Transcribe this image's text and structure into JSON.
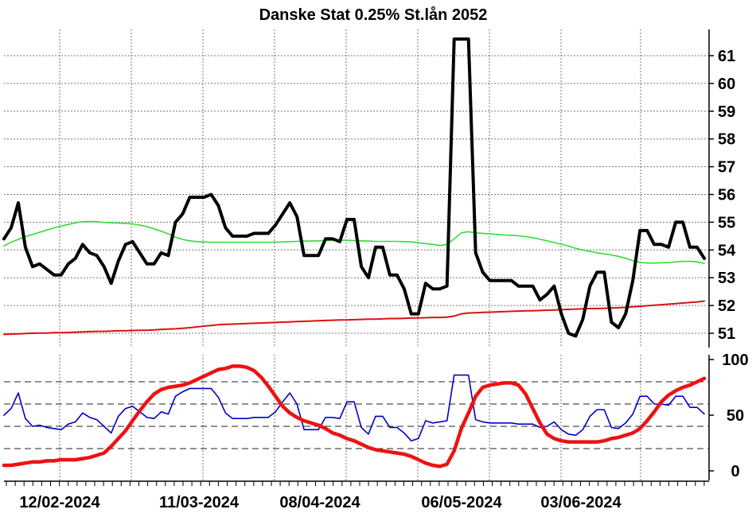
{
  "chart_data": [
    {
      "type": "line",
      "title": "Danske Stat 0.25% St.lån 2052",
      "ylim": [
        50.6,
        61.8
      ],
      "yticks": [
        "51",
        "52",
        "53",
        "54",
        "55",
        "56",
        "57",
        "58",
        "59",
        "60",
        "61"
      ],
      "grid": true,
      "series": [
        {
          "color": "#000000",
          "values": [
            54.4,
            54.8,
            55.7,
            54.1,
            53.4,
            53.5,
            53.3,
            53.1,
            53.1,
            53.5,
            53.7,
            54.2,
            53.9,
            53.8,
            53.4,
            52.8,
            53.6,
            54.2,
            54.3,
            53.9,
            53.5,
            53.5,
            53.9,
            53.8,
            55.0,
            55.3,
            55.9,
            55.9,
            55.9,
            56.0,
            55.6,
            54.8,
            54.5,
            54.5,
            54.5,
            54.6,
            54.6,
            54.6,
            54.9,
            55.3,
            55.7,
            55.2,
            53.8,
            53.8,
            53.8,
            54.4,
            54.4,
            54.3,
            55.1,
            55.1,
            53.4,
            53.0,
            54.1,
            54.1,
            53.1,
            53.1,
            52.6,
            51.7,
            51.7,
            52.8,
            52.6,
            52.6,
            52.7,
            61.6,
            61.6,
            61.6,
            53.9,
            53.2,
            52.9,
            52.9,
            52.9,
            52.9,
            52.7,
            52.7,
            52.7,
            52.2,
            52.4,
            52.7,
            51.7,
            51.0,
            50.9,
            51.5,
            52.7,
            53.2,
            53.2,
            51.4,
            51.2,
            51.7,
            52.9,
            54.7,
            54.7,
            54.2,
            54.2,
            54.1,
            55.0,
            55.0,
            54.1,
            54.1,
            53.7
          ]
        },
        {
          "color": "#33dd33",
          "values": [
            54.15,
            54.28,
            54.38,
            54.48,
            54.56,
            54.64,
            54.72,
            54.8,
            54.86,
            54.92,
            54.98,
            55.02,
            55.03,
            55.02,
            54.99,
            54.98,
            54.97,
            54.96,
            54.94,
            54.9,
            54.84,
            54.76,
            54.68,
            54.58,
            54.46,
            54.38,
            54.33,
            54.3,
            54.29,
            54.28,
            54.28,
            54.28,
            54.28,
            54.28,
            54.28,
            54.28,
            54.28,
            54.28,
            54.28,
            54.29,
            54.3,
            54.31,
            54.32,
            54.32,
            54.33,
            54.34,
            54.35,
            54.35,
            54.35,
            54.34,
            54.33,
            54.32,
            54.31,
            54.31,
            54.31,
            54.31,
            54.3,
            54.29,
            54.26,
            54.23,
            54.2,
            54.16,
            54.2,
            54.4,
            54.62,
            54.66,
            54.62,
            54.6,
            54.58,
            54.56,
            54.54,
            54.53,
            54.51,
            54.48,
            54.44,
            54.39,
            54.33,
            54.27,
            54.21,
            54.14,
            54.06,
            54.0,
            53.95,
            53.9,
            53.86,
            53.82,
            53.77,
            53.7,
            53.62,
            53.55,
            53.53,
            53.53,
            53.54,
            53.55,
            53.57,
            53.59,
            53.59,
            53.57,
            53.52
          ]
        },
        {
          "color": "#dd1111",
          "values": [
            50.96,
            50.97,
            50.98,
            50.99,
            51.0,
            51.01,
            51.01,
            51.02,
            51.02,
            51.03,
            51.04,
            51.05,
            51.06,
            51.07,
            51.07,
            51.08,
            51.09,
            51.09,
            51.1,
            51.11,
            51.11,
            51.12,
            51.14,
            51.15,
            51.16,
            51.18,
            51.2,
            51.23,
            51.26,
            51.28,
            51.31,
            51.32,
            51.33,
            51.34,
            51.35,
            51.36,
            51.37,
            51.38,
            51.39,
            51.4,
            51.41,
            51.42,
            51.43,
            51.44,
            51.45,
            51.46,
            51.47,
            51.48,
            51.48,
            51.49,
            51.5,
            51.51,
            51.51,
            51.52,
            51.53,
            51.53,
            51.54,
            51.55,
            51.55,
            51.56,
            51.57,
            51.57,
            51.58,
            51.62,
            51.7,
            51.73,
            51.74,
            51.75,
            51.76,
            51.77,
            51.78,
            51.79,
            51.8,
            51.81,
            51.81,
            51.82,
            51.83,
            51.84,
            51.85,
            51.86,
            51.87,
            51.88,
            51.89,
            51.89,
            51.9,
            51.91,
            51.92,
            51.93,
            51.95,
            51.97,
            51.99,
            52.01,
            52.03,
            52.05,
            52.07,
            52.09,
            52.11,
            52.13,
            52.16
          ]
        }
      ]
    },
    {
      "type": "line",
      "ylim": [
        0,
        100
      ],
      "yticks": [
        "0",
        "50",
        "100"
      ],
      "grid": true,
      "reference_lines": [
        20,
        40,
        60,
        80
      ],
      "series": [
        {
          "color": "#0000cc",
          "values": [
            50,
            56,
            70,
            47,
            40,
            41,
            39,
            38,
            37,
            42,
            44,
            52,
            48,
            46,
            40,
            34,
            49,
            56,
            58,
            53,
            48,
            47,
            53,
            51,
            67,
            71,
            74,
            74,
            74,
            74,
            66,
            52,
            47,
            47,
            47,
            48,
            48,
            48,
            53,
            62,
            70,
            60,
            37,
            37,
            37,
            48,
            48,
            47,
            62,
            62,
            39,
            33,
            49,
            49,
            39,
            39,
            34,
            27,
            29,
            45,
            43,
            44,
            45,
            86,
            86,
            86,
            46,
            44,
            43,
            43,
            43,
            43,
            42,
            42,
            42,
            39,
            40,
            44,
            37,
            33,
            32,
            37,
            49,
            55,
            55,
            39,
            38,
            43,
            51,
            67,
            67,
            60,
            60,
            59,
            67,
            67,
            57,
            57,
            51
          ]
        },
        {
          "color": "#ee1111",
          "values": [
            5,
            5,
            6,
            7,
            8,
            8,
            9,
            9,
            10,
            10,
            10,
            11,
            12,
            14,
            16,
            22,
            29,
            36,
            45,
            54,
            62,
            69,
            73,
            75,
            76,
            77,
            79,
            82,
            85,
            88,
            91,
            92,
            94,
            94,
            93,
            90,
            84,
            76,
            67,
            58,
            52,
            48,
            45,
            43,
            41,
            38,
            34,
            32,
            29,
            27,
            24,
            21,
            19,
            18,
            17,
            16,
            15,
            13,
            10,
            7,
            5,
            4,
            6,
            18,
            38,
            52,
            67,
            75,
            77,
            78,
            79,
            79,
            77,
            69,
            56,
            43,
            33,
            29,
            27,
            26,
            26,
            26,
            26,
            26,
            27,
            29,
            30,
            32,
            34,
            38,
            45,
            53,
            62,
            68,
            72,
            75,
            77,
            80,
            83
          ]
        }
      ]
    }
  ],
  "x_axis": {
    "labels": [
      "12/02-2024",
      "11/03-2024",
      "08/04-2024",
      "06/05-2024",
      "03/06-2024"
    ]
  }
}
